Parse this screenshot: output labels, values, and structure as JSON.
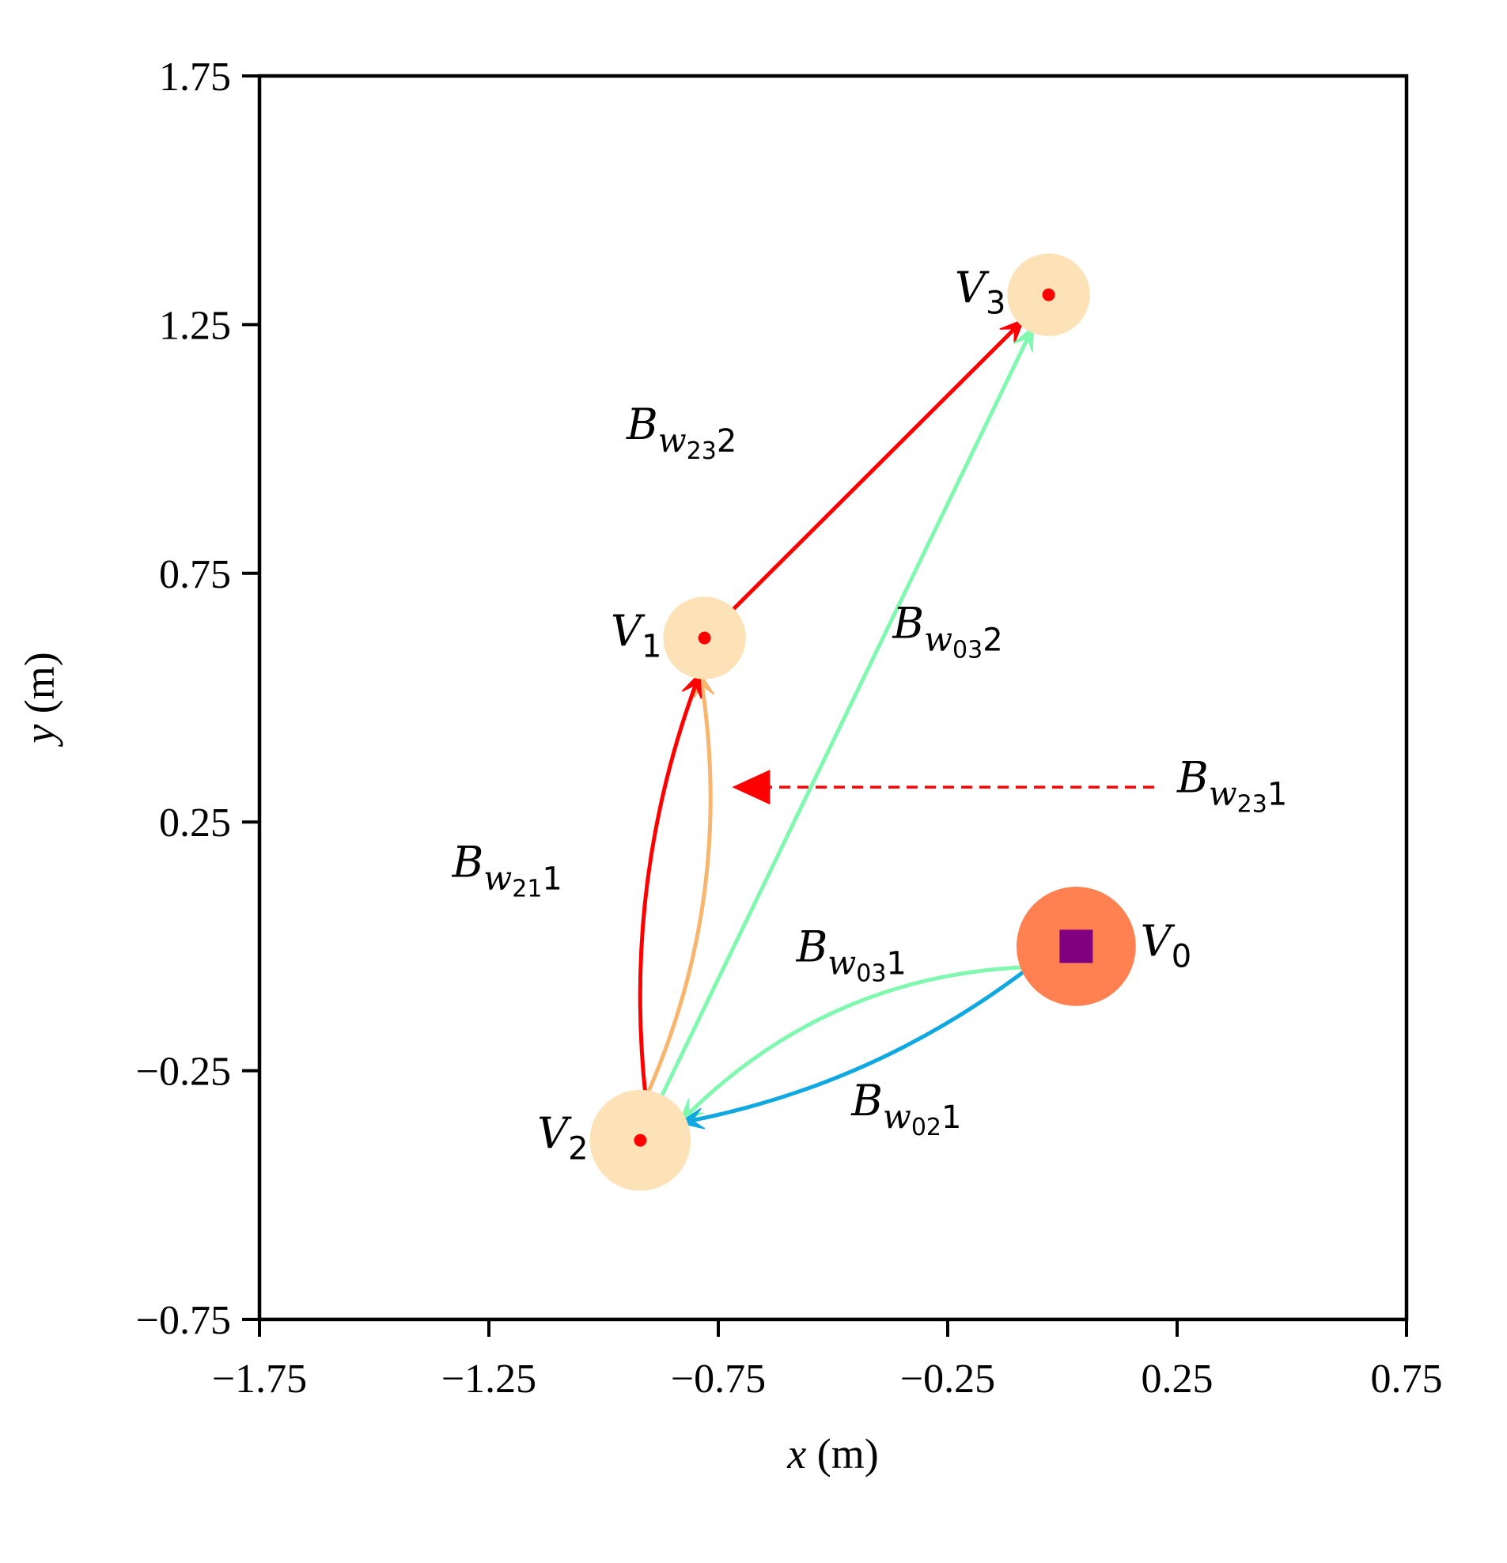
{
  "chart_data": {
    "type": "scatter",
    "title": "",
    "xlabel": {
      "var": "x",
      "unit": "(m)"
    },
    "ylabel": {
      "var": "y",
      "unit": "(m)"
    },
    "xlim": [
      -1.75,
      0.75
    ],
    "ylim": [
      -0.75,
      1.75
    ],
    "xticks": [
      -1.75,
      -1.25,
      -0.75,
      -0.25,
      0.25,
      0.75
    ],
    "yticks": [
      -0.75,
      -0.25,
      0.25,
      0.75,
      1.25,
      1.75
    ],
    "xtick_labels": [
      "−1.75",
      "−1.25",
      "−0.75",
      "−0.25",
      "0.25",
      "0.75"
    ],
    "ytick_labels": [
      "−0.75",
      "−0.25",
      "0.25",
      "0.75",
      "1.25",
      "1.75"
    ],
    "grid": false,
    "nodes": [
      {
        "id": "V0",
        "base": "V",
        "sub": "0",
        "x": 0.03,
        "y": 0.0,
        "radius": 0.13,
        "color": "#FF8050",
        "marker": "square",
        "marker_color": "#800080"
      },
      {
        "id": "V1",
        "base": "V",
        "sub": "1",
        "x": -0.78,
        "y": 0.62,
        "radius": 0.09,
        "color": "#FDE2B8",
        "marker": "dot",
        "marker_color": "#FF0000"
      },
      {
        "id": "V2",
        "base": "V",
        "sub": "2",
        "x": -0.92,
        "y": -0.39,
        "radius": 0.11,
        "color": "#FDE2B8",
        "marker": "dot",
        "marker_color": "#FF0000"
      },
      {
        "id": "V3",
        "base": "V",
        "sub": "3",
        "x": -0.03,
        "y": 1.31,
        "radius": 0.09,
        "color": "#FDE2B8",
        "marker": "dot",
        "marker_color": "#FF0000"
      }
    ],
    "edges": [
      {
        "name": "B_w23_2",
        "base": "B",
        "sub_var": "w",
        "sub_idx": "23",
        "suffix": "2",
        "from": "V1",
        "to": "V3",
        "color": "#FF0000",
        "curvature": 0.0,
        "label_pos": [
          -0.95,
          1.02
        ]
      },
      {
        "name": "B_w03_2",
        "base": "B",
        "sub_var": "w",
        "sub_idx": "03",
        "suffix": "2",
        "from": "V2",
        "to": "V3",
        "color": "#80F8B0",
        "curvature": 0.0,
        "label_pos": [
          -0.37,
          0.62
        ]
      },
      {
        "name": "B_w21_1_orange",
        "base": "B",
        "sub_var": "w",
        "sub_idx": "21",
        "suffix": "1",
        "from": "V2",
        "to": "V1",
        "color": "#F7B56E",
        "curvature": 0.15,
        "label_pos": [
          -1.33,
          0.14
        ]
      },
      {
        "name": "B_w21_1_red",
        "base": "",
        "from": "V2",
        "to": "V1",
        "color": "#FF0000",
        "curvature": -0.12
      },
      {
        "name": "B_w03_1",
        "base": "B",
        "sub_var": "w",
        "sub_idx": "03",
        "suffix": "1",
        "from": "V0",
        "to": "V2",
        "color": "#80F8B0",
        "curvature": 0.2,
        "label_pos": [
          -0.58,
          -0.03
        ]
      },
      {
        "name": "B_w02_1",
        "base": "B",
        "sub_var": "w",
        "sub_idx": "02",
        "suffix": "1",
        "from": "V0",
        "to": "V2",
        "color": "#10A8E0",
        "curvature": -0.12,
        "label_pos": [
          -0.46,
          -0.34
        ]
      }
    ],
    "annotations": [
      {
        "name": "B_w23_1",
        "base": "B",
        "sub_var": "w",
        "sub_idx": "23",
        "suffix": "1",
        "from": [
          0.2,
          0.32
        ],
        "to": [
          -0.72,
          0.32
        ],
        "color": "#FF0000",
        "style": "dashed",
        "label_pos": [
          0.25,
          0.31
        ]
      }
    ]
  }
}
